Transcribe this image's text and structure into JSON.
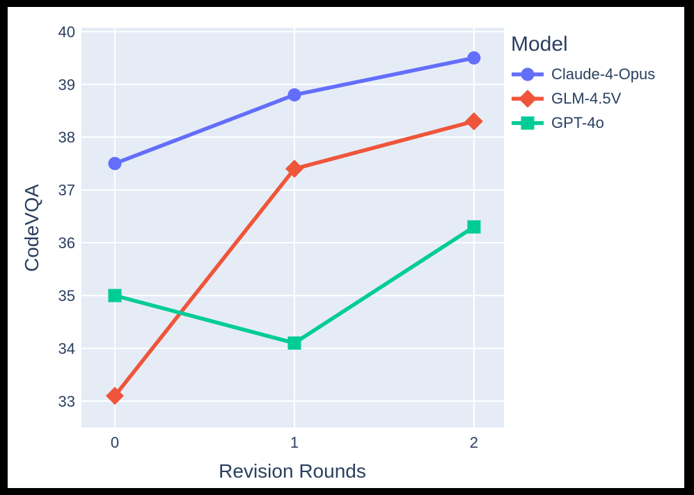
{
  "chart_data": {
    "type": "line",
    "title": "",
    "xlabel": "Revision Rounds",
    "ylabel": "CodeVQA",
    "legend_title": "Model",
    "x": [
      0,
      1,
      2
    ],
    "x_tick_labels": [
      "0",
      "1",
      "2"
    ],
    "y_ticks": [
      33,
      34,
      35,
      36,
      37,
      38,
      39,
      40
    ],
    "xlim": [
      -0.186,
      2.167
    ],
    "ylim": [
      32.5,
      40.07
    ],
    "grid": true,
    "legend_position": "right-outside",
    "colors": {
      "plot_background": "#E5ECF6",
      "grid": "#FFFFFF",
      "font": "#2a3f5f",
      "paper_background": "#FFFFFF",
      "frame_border": "#000000"
    },
    "series": [
      {
        "name": "Claude-4-Opus",
        "marker": "circle",
        "color": "#636EFA",
        "values": [
          37.5,
          38.8,
          39.5
        ]
      },
      {
        "name": "GLM-4.5V",
        "marker": "diamond",
        "color": "#EF553B",
        "values": [
          33.1,
          37.4,
          38.3
        ]
      },
      {
        "name": "GPT-4o",
        "marker": "square",
        "color": "#00CC96",
        "values": [
          35.0,
          34.1,
          36.3
        ]
      }
    ]
  }
}
